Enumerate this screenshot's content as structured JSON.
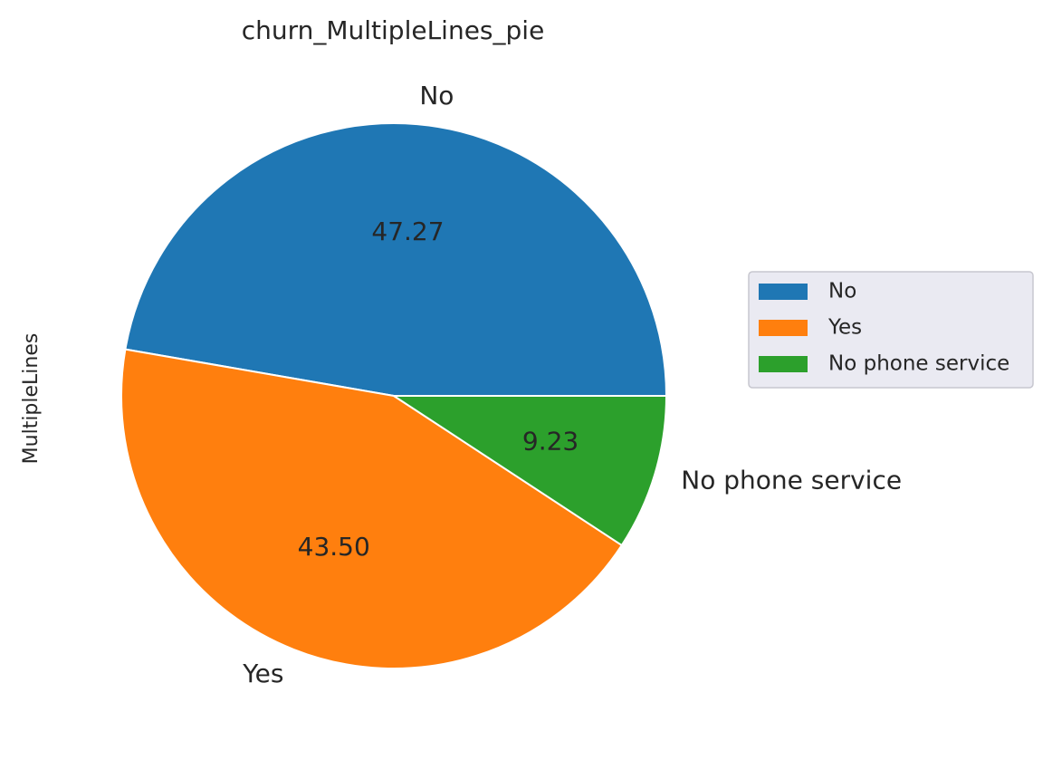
{
  "chart_data": {
    "type": "pie",
    "title": "churn_MultipleLines_pie",
    "ylabel": "MultipleLines",
    "categories": [
      "No",
      "Yes",
      "No phone service"
    ],
    "values": [
      47.27,
      43.5,
      9.23
    ],
    "value_labels": [
      "47.27",
      "43.50",
      "9.23"
    ],
    "colors": [
      "#1f77b4",
      "#ff7f0e",
      "#2ca02c"
    ],
    "start_angle_deg": 0,
    "direction": "counterclockwise",
    "legend": {
      "placement": "center-right",
      "entries": [
        "No",
        "Yes",
        "No phone service"
      ]
    }
  }
}
